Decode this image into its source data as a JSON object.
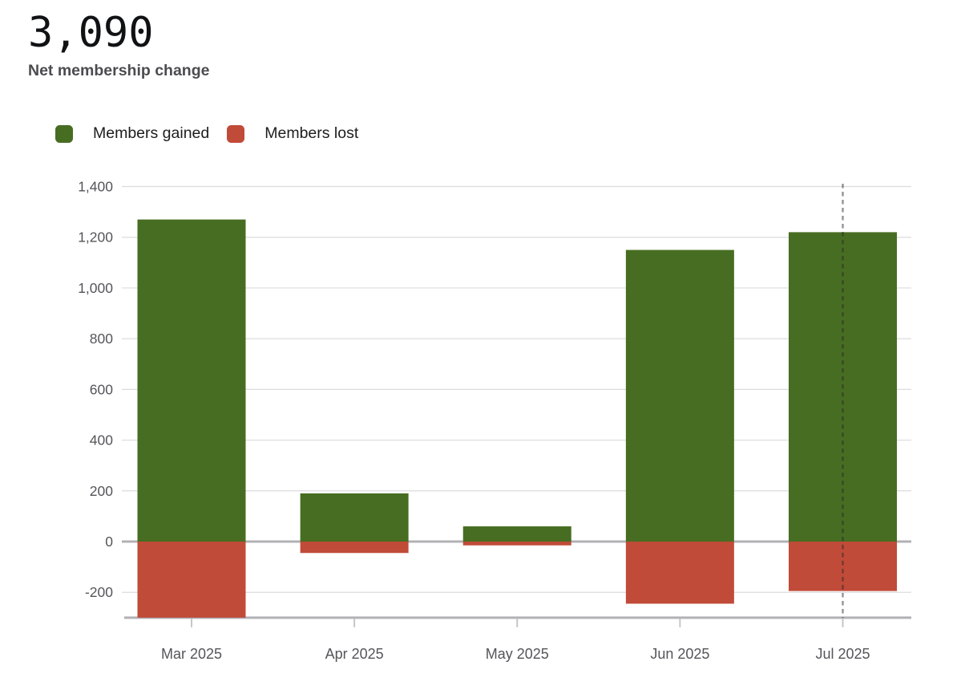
{
  "header": {
    "value": "3,090",
    "label": "Net membership change"
  },
  "chart_data": {
    "type": "bar",
    "title": "Net membership change",
    "categories": [
      "Mar 2025",
      "Apr 2025",
      "May 2025",
      "Jun 2025",
      "Jul 2025"
    ],
    "series": [
      {
        "name": "Members gained",
        "color": "#476d22",
        "values": [
          1270,
          190,
          60,
          1150,
          1220
        ]
      },
      {
        "name": "Members lost",
        "color": "#c04b38",
        "values": [
          -300,
          -45,
          -15,
          -245,
          -195
        ]
      }
    ],
    "net_total": 3090,
    "yticks": [
      -200,
      0,
      200,
      400,
      600,
      800,
      1000,
      1200,
      1400
    ],
    "ylim": [
      -300,
      1400
    ],
    "xlabel": "",
    "ylabel": "",
    "grid": true,
    "legend_position": "top-left",
    "annotation": {
      "type": "dashed-vertical-line",
      "category": "Jul 2025"
    }
  }
}
